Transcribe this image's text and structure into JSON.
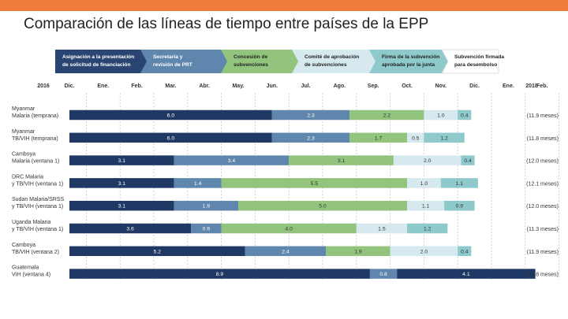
{
  "slide": {
    "title": "Comparación de las líneas de tiempo entre países de la EPP"
  },
  "chart_data": {
    "type": "bar",
    "stacked": true,
    "orientation": "horizontal",
    "x_unit": "months",
    "stages": [
      {
        "label_lines": [
          "Asignación a la presentación",
          "de solicitud de financiación"
        ],
        "color": "#2b4572",
        "text_color": "#ffffff"
      },
      {
        "label_lines": [
          "Secretaría y",
          "revisión de PRT"
        ],
        "color": "#5f86ad",
        "text_color": "#ffffff"
      },
      {
        "label_lines": [
          "Concesión de",
          "subvenciones"
        ],
        "color": "#93c47d",
        "text_color": "#222222"
      },
      {
        "label_lines": [
          "Comité de aprobación",
          "de subvenciones"
        ],
        "color": "#d6e9ee",
        "text_color": "#222222"
      },
      {
        "label_lines": [
          "Firma de la subvención",
          "aprobada por la junta"
        ],
        "color": "#8ec9cb",
        "text_color": "#222222"
      },
      {
        "label_lines": [
          "Subvención firmada",
          "para desembolso"
        ],
        "color": "#ffffff",
        "text_color": "#222222"
      }
    ],
    "timeline": {
      "months": [
        "Dic.",
        "Ene.",
        "Feb.",
        "Mar.",
        "Abr.",
        "May.",
        "Jun.",
        "Jul.",
        "Ago.",
        "Sep.",
        "Oct.",
        "Nov.",
        "Dic.",
        "Ene.",
        "Feb."
      ],
      "start_year": "2016",
      "end_year": "2018"
    },
    "rows": [
      {
        "label_lines": [
          "Myanmar",
          "Malaria (temprana)"
        ],
        "values": [
          6.0,
          2.3,
          2.2,
          1.0,
          0.4
        ],
        "value_labels": [
          "6.0",
          "2.3",
          "2.2",
          "1.0",
          "0.4"
        ],
        "colors": [
          "#1f3864",
          "#5f86ad",
          "#93c47d",
          "#d6e9ee",
          "#8ec9cb"
        ],
        "total": "(11.9 meses)"
      },
      {
        "label_lines": [
          "Myanmar",
          "TB/VIH (temprana)"
        ],
        "values": [
          6.0,
          2.3,
          1.7,
          0.5,
          1.2
        ],
        "value_labels": [
          "6.0",
          "2.3",
          "1.7",
          "0.5",
          "1.2"
        ],
        "colors": [
          "#1f3864",
          "#5f86ad",
          "#93c47d",
          "#d6e9ee",
          "#8ec9cb"
        ],
        "total": "(11.8 meses)"
      },
      {
        "label_lines": [
          "Camboya",
          "Malaria (ventana 1)"
        ],
        "values": [
          3.1,
          3.4,
          3.1,
          2.0,
          0.4
        ],
        "value_labels": [
          "3.1",
          "3.4",
          "3.1",
          "2.0",
          "0.4"
        ],
        "colors": [
          "#1f3864",
          "#5f86ad",
          "#93c47d",
          "#d6e9ee",
          "#8ec9cb"
        ],
        "total": "(12.0 meses)"
      },
      {
        "label_lines": [
          "DRC Malaria",
          "y TB/VIH (ventana 1)"
        ],
        "values": [
          3.1,
          1.4,
          5.5,
          1.0,
          1.1
        ],
        "value_labels": [
          "3.1",
          "1.4",
          "5.5",
          "1.0",
          "1.1"
        ],
        "colors": [
          "#1f3864",
          "#5f86ad",
          "#93c47d",
          "#d6e9ee",
          "#8ec9cb"
        ],
        "total": "(12.1 meses)"
      },
      {
        "label_lines": [
          "Sudan Malaria/SRSS",
          "y TB/VIH (ventana 1)"
        ],
        "values": [
          3.1,
          1.9,
          5.0,
          1.1,
          0.9
        ],
        "value_labels": [
          "3.1",
          "1.9",
          "5.0",
          "1.1",
          "0.9"
        ],
        "colors": [
          "#1f3864",
          "#5f86ad",
          "#93c47d",
          "#d6e9ee",
          "#8ec9cb"
        ],
        "total": "(12.0 meses)"
      },
      {
        "label_lines": [
          "Uganda Malaria",
          "y TB/VIH (ventana 1)"
        ],
        "values": [
          3.6,
          0.9,
          4.0,
          1.5,
          1.2
        ],
        "value_labels": [
          "3.6",
          "0.9",
          "4.0",
          "1.5",
          "1.2"
        ],
        "colors": [
          "#1f3864",
          "#5f86ad",
          "#93c47d",
          "#d6e9ee",
          "#8ec9cb"
        ],
        "total": "(11.3 meses)"
      },
      {
        "label_lines": [
          "Camboya",
          "TB/VIH (ventana 2)"
        ],
        "values": [
          5.2,
          2.4,
          1.9,
          2.0,
          0.4
        ],
        "value_labels": [
          "5.2",
          "2.4",
          "1.9",
          "2.0",
          "0.4"
        ],
        "colors": [
          "#1f3864",
          "#5f86ad",
          "#93c47d",
          "#d6e9ee",
          "#8ec9cb"
        ],
        "total": "(11.9 meses)"
      },
      {
        "label_lines": [
          "Guatemala",
          "VIH (ventana 4)"
        ],
        "values": [
          8.9,
          0.8,
          4.1
        ],
        "value_labels": [
          "8.9",
          "0.8",
          "4.1"
        ],
        "colors": [
          "#1f3864",
          "#5f86ad",
          "#1f3864"
        ],
        "total": "(13.8 meses)"
      }
    ],
    "legend": "top",
    "grid": true
  }
}
